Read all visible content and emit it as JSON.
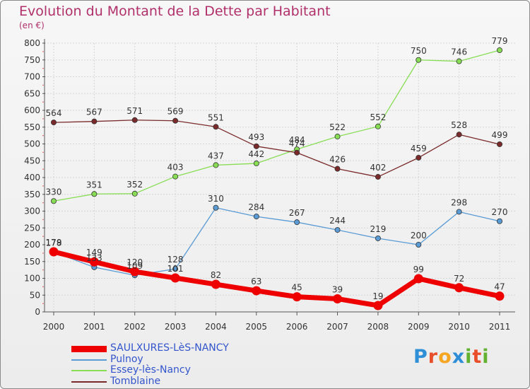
{
  "title": "Evolution du Montant de la Dette par Habitant",
  "subtitle": "(en €)",
  "logo": {
    "text": "Proxiti",
    "colors": [
      "#2e8fd6",
      "#e94e2a",
      "#f5a623",
      "#2e8fd6",
      "#62b22f",
      "#e94e2a",
      "#62b22f"
    ]
  },
  "chart_data": {
    "type": "line",
    "x": [
      "2000",
      "2001",
      "2002",
      "2003",
      "2004",
      "2005",
      "2006",
      "2007",
      "2008",
      "2009",
      "2010",
      "2011"
    ],
    "ylim": [
      0,
      800
    ],
    "yticks": [
      "0",
      "50",
      "100",
      "150",
      "200",
      "250",
      "300",
      "350",
      "400",
      "450",
      "500",
      "550",
      "600",
      "650",
      "700",
      "750",
      "800"
    ],
    "grid": true,
    "legend_position": "bottom",
    "series": [
      {
        "name": "SAULXURES-LèS-NANCY",
        "color": "#ee0000",
        "values": [
          179,
          149,
          120,
          101,
          82,
          63,
          45,
          39,
          19,
          99,
          72,
          47
        ],
        "labels": [
          "179",
          "149",
          "120",
          "101",
          "82",
          "63",
          "45",
          "39",
          "19",
          "99",
          "72",
          "47"
        ],
        "bold": true
      },
      {
        "name": "Pulnoy",
        "color": "#5a9bd5",
        "values": [
          178,
          133,
          109,
          128,
          310,
          284,
          267,
          244,
          219,
          200,
          298,
          270
        ],
        "labels": [
          "178",
          "133",
          "109",
          "128",
          "310",
          "284",
          "267",
          "244",
          "219",
          "200",
          "298",
          "270"
        ],
        "bold": false
      },
      {
        "name": "Essey-lès-Nancy",
        "color": "#88dd55",
        "values": [
          330,
          351,
          352,
          403,
          437,
          442,
          484,
          522,
          552,
          750,
          746,
          779
        ],
        "labels": [
          "330",
          "351",
          "352",
          "403",
          "437",
          "442",
          "484",
          "522",
          "552",
          "750",
          "746",
          "779"
        ],
        "bold": false
      },
      {
        "name": "Tomblaine",
        "color": "#7a2a2a",
        "values": [
          564,
          567,
          571,
          569,
          551,
          493,
          474,
          426,
          402,
          459,
          528,
          499
        ],
        "labels": [
          "564",
          "567",
          "571",
          "569",
          "551",
          "493",
          "474",
          "426",
          "402",
          "459",
          "528",
          "499"
        ],
        "bold": false
      }
    ]
  }
}
